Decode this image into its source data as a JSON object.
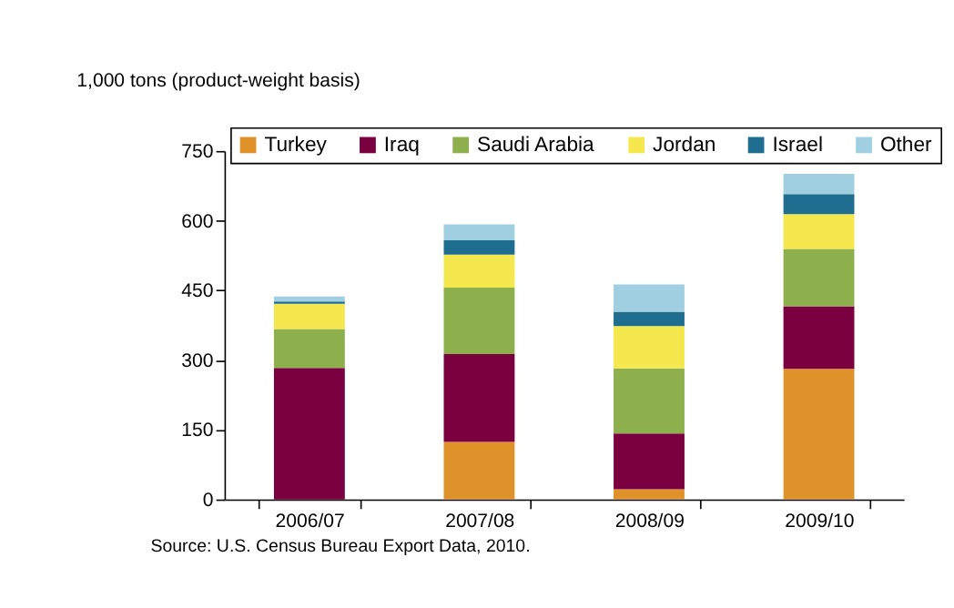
{
  "chart_data": {
    "type": "bar",
    "stacked": true,
    "ylabel": "1,000 tons (product-weight basis)",
    "categories": [
      "2006/07",
      "2007/08",
      "2008/09",
      "2009/10"
    ],
    "series": [
      {
        "name": "Turkey",
        "color": "#e0922a",
        "values": [
          0,
          124,
          22,
          281
        ]
      },
      {
        "name": "Iraq",
        "color": "#7a0040",
        "values": [
          283,
          189,
          120,
          135
        ]
      },
      {
        "name": "Saudi Arabia",
        "color": "#8db04c",
        "values": [
          84,
          143,
          140,
          123
        ]
      },
      {
        "name": "Jordan",
        "color": "#f5e84e",
        "values": [
          54,
          71,
          91,
          75
        ]
      },
      {
        "name": "Israel",
        "color": "#1f6e8f",
        "values": [
          5,
          31,
          31,
          43
        ]
      },
      {
        "name": "Other",
        "color": "#9fcfe0",
        "values": [
          11,
          34,
          59,
          44
        ]
      }
    ],
    "ylim": [
      0,
      750
    ],
    "yticks": [
      0,
      150,
      300,
      450,
      600,
      750
    ],
    "grid": false,
    "legend": "top",
    "annotations": [
      "Source:  U.S. Census Bureau Export Data, 2010."
    ]
  }
}
